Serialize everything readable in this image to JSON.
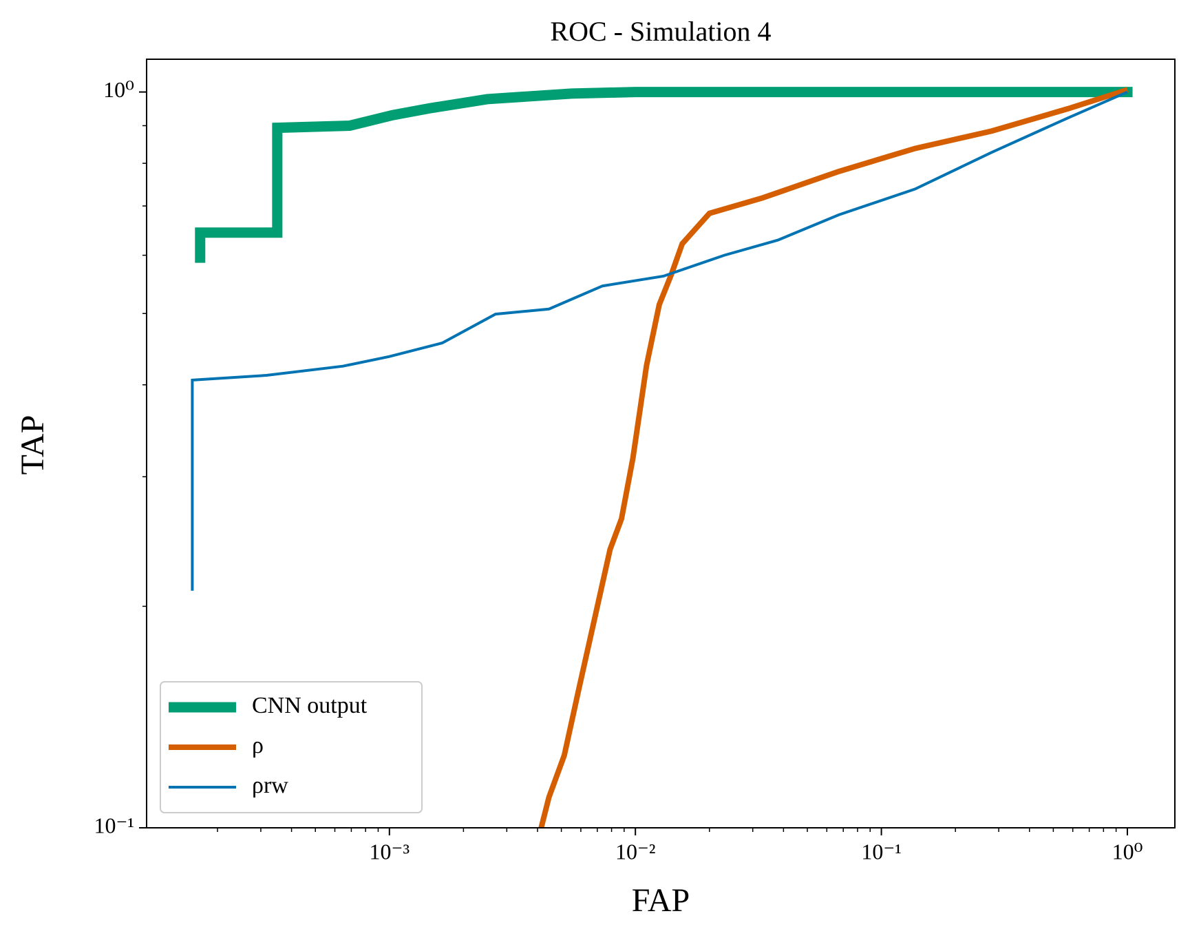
{
  "chart_data": {
    "type": "line",
    "title": "ROC - Simulation 4",
    "xlabel": "FAP",
    "ylabel": "TAP",
    "xscale": "log",
    "yscale": "log",
    "legend": "lower left",
    "xlim": [
      0.000103,
      1.56
    ],
    "ylim": [
      0.1,
      1.108
    ],
    "xticks": [
      {
        "value": 0.001,
        "label": "10⁻³"
      },
      {
        "value": 0.01,
        "label": "10⁻²"
      },
      {
        "value": 0.1,
        "label": "10⁻¹"
      },
      {
        "value": 1,
        "label": "10⁰"
      }
    ],
    "yticks": [
      {
        "value": 0.1,
        "label": "10⁻¹"
      },
      {
        "value": 1,
        "label": "10⁰"
      }
    ],
    "xminorticks": [
      0.0002,
      0.0003,
      0.0004,
      0.0005,
      0.0006,
      0.0007,
      0.0008,
      0.0009,
      0.002,
      0.003,
      0.004,
      0.005,
      0.006,
      0.007,
      0.008,
      0.009,
      0.02,
      0.03,
      0.04,
      0.05,
      0.06,
      0.07,
      0.08,
      0.09,
      0.2,
      0.3,
      0.4,
      0.5,
      0.6,
      0.7,
      0.8,
      0.9
    ],
    "yminorticks": [
      0.2,
      0.3,
      0.4,
      0.5,
      0.6,
      0.7,
      0.8,
      0.9
    ],
    "series": [
      {
        "name": "CNN output",
        "color": "#029e73",
        "width": 15,
        "x": [
          0.00017,
          0.00017,
          0.00035,
          0.00035,
          0.00069,
          0.00103,
          0.00145,
          0.0025,
          0.0055,
          0.01,
          1.05
        ],
        "values": [
          0.586,
          0.644,
          0.644,
          0.894,
          0.9,
          0.93,
          0.95,
          0.978,
          0.995,
          1.0,
          1.0
        ]
      },
      {
        "name": "ρ",
        "color": "#d55e00",
        "width": 8,
        "x": [
          0.00414,
          0.00445,
          0.00514,
          0.00593,
          0.00684,
          0.00789,
          0.00878,
          0.00977,
          0.0111,
          0.0125,
          0.014,
          0.0155,
          0.02,
          0.0329,
          0.0672,
          0.137,
          0.281,
          0.573,
          1.0
        ],
        "values": [
          0.1,
          0.11,
          0.1255,
          0.156,
          0.193,
          0.239,
          0.263,
          0.318,
          0.425,
          0.514,
          0.565,
          0.622,
          0.684,
          0.718,
          0.78,
          0.838,
          0.885,
          0.949,
          1.007
        ]
      },
      {
        "name": "ρrw",
        "color": "#0173b2",
        "width": 4,
        "x": [
          0.000158,
          0.000158,
          0.000316,
          0.000647,
          0.001,
          0.00164,
          0.0027,
          0.00445,
          0.00735,
          0.013,
          0.023,
          0.0379,
          0.0672,
          0.137,
          0.281,
          0.573,
          1.0
        ],
        "values": [
          0.21,
          0.406,
          0.412,
          0.424,
          0.437,
          0.456,
          0.499,
          0.507,
          0.545,
          0.562,
          0.6,
          0.629,
          0.681,
          0.738,
          0.828,
          0.922,
          1.0
        ]
      }
    ]
  }
}
